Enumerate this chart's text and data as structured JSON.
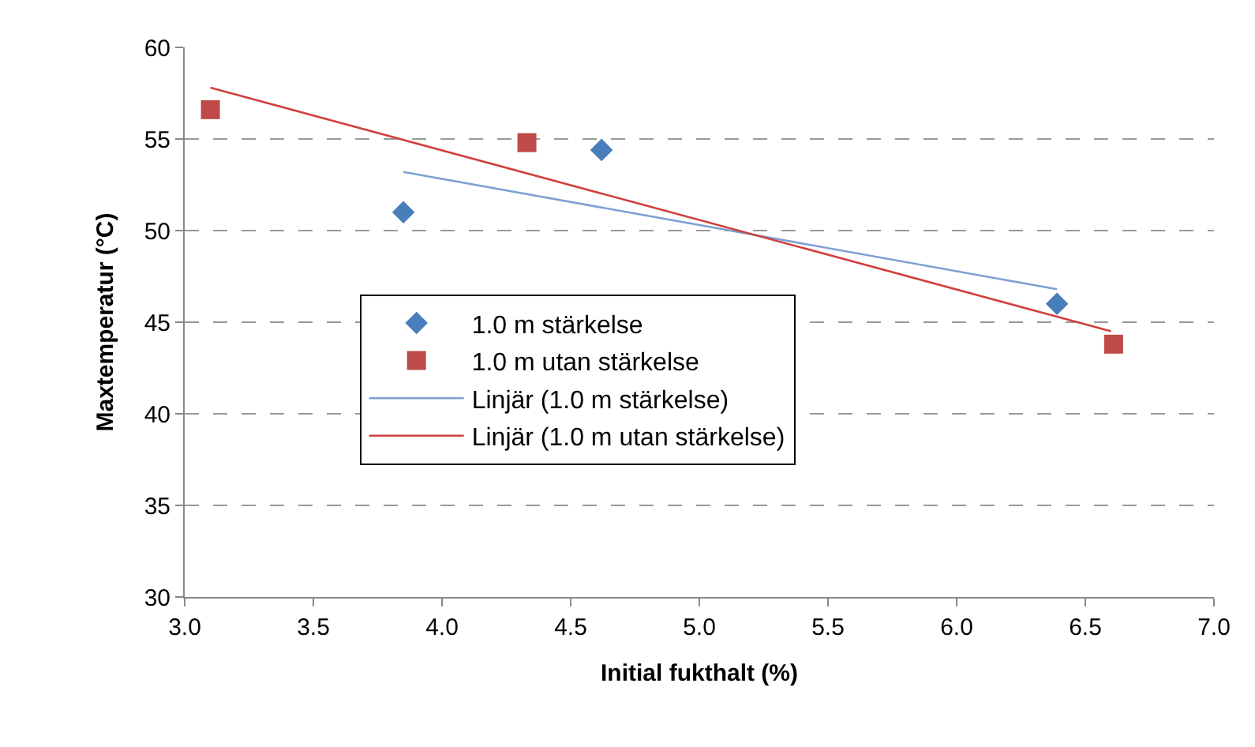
{
  "chart_data": {
    "type": "scatter",
    "xlabel": "Initial fukthalt (%)",
    "ylabel": "Maxtemperatur (°C)",
    "series": [
      {
        "name": "1.0 m stärkelse",
        "color": "#4a7ebb",
        "marker": "diamond",
        "x": [
          3.85,
          4.62,
          6.39
        ],
        "values": [
          51.0,
          54.4,
          46.0
        ]
      },
      {
        "name": "1.0 m utan stärkelse",
        "color": "#be4b48",
        "marker": "square",
        "x": [
          3.1,
          4.33,
          6.61
        ],
        "values": [
          56.6,
          54.8,
          43.8
        ]
      },
      {
        "name": "Linjär (1.0 m stärkelse)",
        "type": "line",
        "color": "#7f9fd4",
        "marker": "none",
        "x": [
          3.85,
          6.39
        ],
        "values": [
          53.2,
          46.8
        ]
      },
      {
        "name": "Linjär (1.0 m utan stärkelse)",
        "type": "line",
        "color": "#d0403c",
        "marker": "none",
        "x": [
          3.1,
          6.6
        ],
        "values": [
          57.8,
          44.5
        ]
      }
    ],
    "xlim": [
      3.0,
      7.0
    ],
    "xticks": [
      {
        "value": 3.0,
        "label": "3.0"
      },
      {
        "value": 3.5,
        "label": "3.5"
      },
      {
        "value": 4.0,
        "label": "4.0"
      },
      {
        "value": 4.5,
        "label": "4.5"
      },
      {
        "value": 5.0,
        "label": "5.0"
      },
      {
        "value": 5.5,
        "label": "5.5"
      },
      {
        "value": 6.0,
        "label": "6.0"
      },
      {
        "value": 6.5,
        "label": "6.5"
      },
      {
        "value": 7.0,
        "label": "7.0"
      }
    ],
    "ylim": [
      30,
      60
    ],
    "yticks": [
      30,
      35,
      40,
      45,
      50,
      55,
      60
    ],
    "grid": "y",
    "legend": "center"
  }
}
